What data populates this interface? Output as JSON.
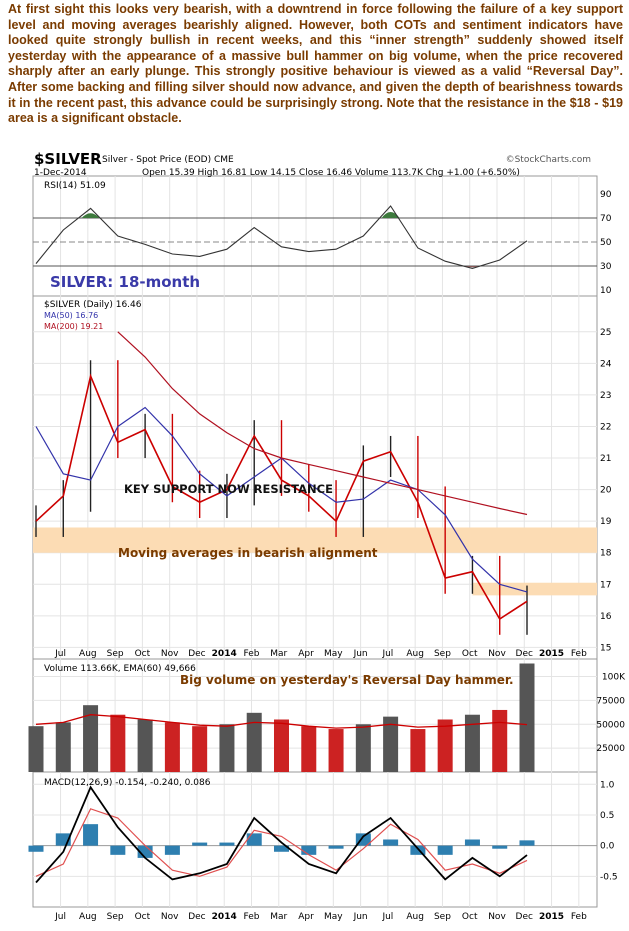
{
  "commentary": "At first sight this looks very bearish, with a downtrend in force following the failure of a key support level and moving averages bearishly aligned. However, both COTs and sentiment indicators have looked quite strongly bullish in recent weeks, and this “inner strength” suddenly showed itself yesterday with the appearance of a massive bull hammer on big volume, when the price recovered sharply after an early plunge. This strongly positive behaviour is viewed as a valid “Reversal Day”. After some backing and filling silver should now advance, and given the depth of bearishness towards it in the recent past, this advance could be surprisingly strong. Note that the resistance in the $18 - $19 area is a significant obstacle.",
  "header": {
    "symbol": "$SILVER",
    "description": "Silver - Spot Price (EOD)  CME",
    "date": "1-Dec-2014",
    "quote": "Open 15.39  High 16.81  Low 14.15  Close 16.46  Volume 113.7K  Chg +1.00 (+6.50%)",
    "credit": "©StockCharts.com"
  },
  "colors": {
    "price_up": "#222222",
    "price_down": "#cc0000",
    "ma50": "#3333aa",
    "ma200": "#b01020",
    "band": "#fcdcb4",
    "annotation": "#7a3b00",
    "rsi_line": "#333333",
    "rsi_over": "#3d7a3d",
    "rsi_under": "#8a5a5a",
    "macd_hist": "#2e7fb0",
    "signal": "#e05050",
    "volume_up": "#555555",
    "volume_down": "#cc2222"
  },
  "chart_data": [
    {
      "type": "line",
      "panel": "RSI",
      "legend": "RSI(14) 51.09",
      "ylim": [
        0,
        100
      ],
      "y_ticks": [
        "10",
        "30",
        "50",
        "70",
        "90"
      ],
      "reference_lines": [
        30,
        50,
        70
      ],
      "x": [
        "Jun-2013",
        "Jul-2013",
        "Aug-2013",
        "Sep-2013",
        "Oct-2013",
        "Nov-2013",
        "Dec-2013",
        "Jan-2014",
        "Feb-2014",
        "Mar-2014",
        "Apr-2014",
        "May-2014",
        "Jun-2014",
        "Jul-2014",
        "Aug-2014",
        "Sep-2014",
        "Oct-2014",
        "Nov-2014",
        "Dec-2014"
      ],
      "values": [
        32,
        60,
        78,
        55,
        48,
        40,
        38,
        44,
        62,
        46,
        42,
        44,
        55,
        80,
        45,
        34,
        28,
        35,
        51
      ],
      "annotation": "SILVER: 18-month"
    },
    {
      "type": "line",
      "panel": "Price",
      "title": "$SILVER (Daily) 16.46",
      "ylim": [
        14,
        25.5
      ],
      "y_ticks": [
        "15",
        "16",
        "17",
        "18",
        "19",
        "20",
        "21",
        "22",
        "23",
        "24",
        "25"
      ],
      "x_labels": [
        "Jul",
        "Aug",
        "Sep",
        "Oct",
        "Nov",
        "Dec",
        "2014",
        "Feb",
        "Mar",
        "Apr",
        "May",
        "Jun",
        "Jul",
        "Aug",
        "Sep",
        "Oct",
        "Nov",
        "Dec",
        "2015",
        "Feb"
      ],
      "x": [
        "Jun-2013",
        "Jul-2013",
        "Aug-2013",
        "Sep-2013",
        "Oct-2013",
        "Nov-2013",
        "Dec-2013",
        "Jan-2014",
        "Feb-2014",
        "Mar-2014",
        "Apr-2014",
        "May-2014",
        "Jun-2014",
        "Jul-2014",
        "Aug-2014",
        "Sep-2014",
        "Oct-2014",
        "Nov-2014",
        "Dec-2014"
      ],
      "series": [
        {
          "name": "MA(50) 16.76",
          "values": [
            22.0,
            20.5,
            20.3,
            22.0,
            22.6,
            21.7,
            20.5,
            19.8,
            20.4,
            21.0,
            20.2,
            19.6,
            19.7,
            20.3,
            20.0,
            19.2,
            17.8,
            17.0,
            16.76
          ]
        },
        {
          "name": "MA(200) 19.21",
          "values": [
            null,
            null,
            null,
            25.0,
            24.2,
            23.2,
            22.4,
            21.8,
            21.3,
            21.0,
            20.8,
            20.6,
            20.4,
            20.2,
            20.0,
            19.8,
            19.6,
            19.4,
            19.21
          ]
        },
        {
          "name": "$SILVER",
          "values": [
            19.0,
            19.8,
            23.6,
            21.5,
            21.9,
            20.1,
            19.6,
            20.0,
            21.7,
            20.3,
            19.8,
            19.0,
            20.9,
            21.2,
            19.6,
            17.2,
            17.4,
            15.9,
            16.46
          ]
        }
      ],
      "annotations": [
        "KEY SUPPORT NOW RESISTANCE",
        "Moving averages in bearish alignment"
      ]
    },
    {
      "type": "bar",
      "panel": "Volume",
      "legend": "Volume 113.66K, EMA(60) 49,666",
      "ylim": [
        0,
        110000
      ],
      "y_ticks": [
        "25000",
        "50000",
        "75000",
        "100K"
      ],
      "x": [
        "Jun-2013",
        "Jul-2013",
        "Aug-2013",
        "Sep-2013",
        "Oct-2013",
        "Nov-2013",
        "Dec-2013",
        "Jan-2014",
        "Feb-2014",
        "Mar-2014",
        "Apr-2014",
        "May-2014",
        "Jun-2014",
        "Jul-2014",
        "Aug-2014",
        "Sep-2014",
        "Oct-2014",
        "Nov-2014",
        "Dec-2014"
      ],
      "values": [
        48000,
        52000,
        70000,
        60000,
        55000,
        52000,
        48000,
        50000,
        62000,
        55000,
        48000,
        45000,
        50000,
        58000,
        45000,
        55000,
        60000,
        65000,
        113660
      ],
      "ema60": [
        50000,
        52000,
        60000,
        58000,
        55000,
        52000,
        49000,
        48000,
        52000,
        51000,
        48000,
        46000,
        47000,
        50000,
        47000,
        48000,
        50000,
        52000,
        49666
      ],
      "annotation": "Big volume on yesterday's Reversal Day hammer."
    },
    {
      "type": "line",
      "panel": "MACD",
      "legend": "MACD(12,26,9) -0.154, -0.240, 0.086",
      "ylim": [
        -1.0,
        1.2
      ],
      "y_ticks": [
        "-0.5",
        "0.0",
        "0.5",
        "1.0"
      ],
      "x_labels": [
        "Jul",
        "Aug",
        "Sep",
        "Oct",
        "Nov",
        "Dec",
        "2014",
        "Feb",
        "Mar",
        "Apr",
        "May",
        "Jun",
        "Jul",
        "Aug",
        "Sep",
        "Oct",
        "Nov",
        "Dec",
        "2015",
        "Feb"
      ],
      "x": [
        "Jun-2013",
        "Jul-2013",
        "Aug-2013",
        "Sep-2013",
        "Oct-2013",
        "Nov-2013",
        "Dec-2013",
        "Jan-2014",
        "Feb-2014",
        "Mar-2014",
        "Apr-2014",
        "May-2014",
        "Jun-2014",
        "Jul-2014",
        "Aug-2014",
        "Sep-2014",
        "Oct-2014",
        "Nov-2014",
        "Dec-2014"
      ],
      "series": [
        {
          "name": "MACD",
          "values": [
            -0.6,
            -0.1,
            0.95,
            0.3,
            -0.2,
            -0.55,
            -0.45,
            -0.3,
            0.45,
            0.05,
            -0.3,
            -0.45,
            0.15,
            0.45,
            -0.05,
            -0.55,
            -0.2,
            -0.5,
            -0.154
          ]
        },
        {
          "name": "Signal",
          "values": [
            -0.5,
            -0.3,
            0.6,
            0.45,
            0.0,
            -0.4,
            -0.5,
            -0.35,
            0.25,
            0.15,
            -0.15,
            -0.4,
            -0.05,
            0.35,
            0.1,
            -0.4,
            -0.3,
            -0.45,
            -0.24
          ]
        },
        {
          "name": "Histogram",
          "values": [
            -0.1,
            0.2,
            0.35,
            -0.15,
            -0.2,
            -0.15,
            0.05,
            0.05,
            0.2,
            -0.1,
            -0.15,
            -0.05,
            0.2,
            0.1,
            -0.15,
            -0.15,
            0.1,
            -0.05,
            0.086
          ]
        }
      ]
    }
  ]
}
